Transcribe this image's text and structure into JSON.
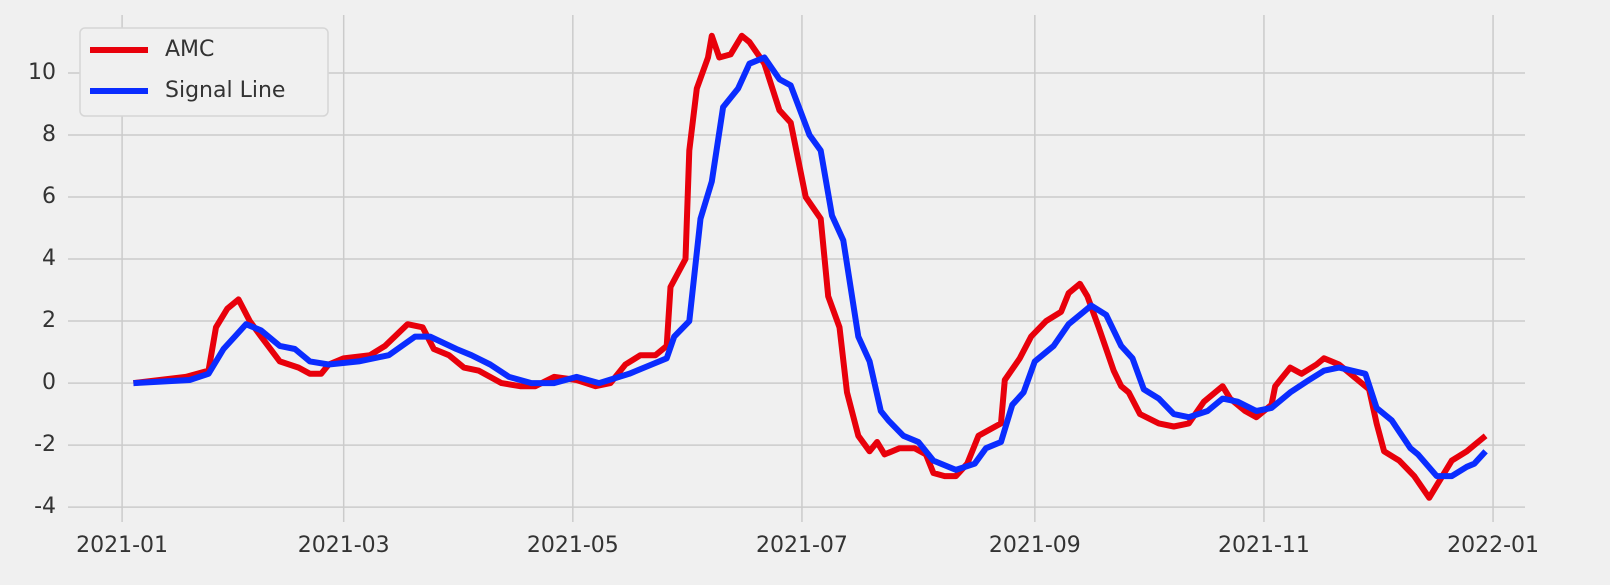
{
  "chart_data": {
    "type": "line",
    "xlim": [
      -14.4,
      373.5
    ],
    "xticks": [
      {
        "value": 0,
        "label": "2021-01"
      },
      {
        "value": 59,
        "label": "2021-03"
      },
      {
        "value": 120,
        "label": "2021-05"
      },
      {
        "value": 181,
        "label": "2021-07"
      },
      {
        "value": 243,
        "label": "2021-09"
      },
      {
        "value": 304,
        "label": "2021-11"
      },
      {
        "value": 365,
        "label": "2022-01"
      }
    ],
    "ylim": [
      -4.48,
      11.87
    ],
    "yticks": [
      -4,
      -2,
      0,
      2,
      4,
      6,
      8,
      10
    ],
    "grid": true,
    "legend": "upper left",
    "series": [
      {
        "name": "AMC",
        "color": "#e8000b",
        "x": [
          3,
          17,
          23,
          25,
          28,
          31,
          34,
          37,
          42,
          47,
          50,
          53,
          55,
          59,
          66,
          70,
          76,
          80,
          83,
          87,
          91,
          95,
          101,
          106,
          110,
          115,
          121,
          126,
          130,
          134,
          138,
          142,
          145,
          146,
          150,
          151,
          153,
          156,
          157,
          159,
          162,
          165,
          167,
          171,
          175,
          178,
          182,
          186,
          188,
          191,
          193,
          196,
          199,
          201,
          203,
          207,
          211,
          214,
          216,
          219,
          222,
          225,
          228,
          234,
          235,
          239,
          242,
          246,
          250,
          252,
          255,
          257,
          260,
          264,
          266,
          268,
          271,
          276,
          280,
          284,
          288,
          293,
          295,
          299,
          302,
          306,
          307,
          311,
          314,
          318,
          320,
          324,
          328,
          332,
          334,
          336,
          340,
          344,
          348,
          350,
          354,
          358,
          360,
          363
        ],
        "values": [
          0,
          0.2,
          0.4,
          1.8,
          2.4,
          2.7,
          2.0,
          1.5,
          0.7,
          0.5,
          0.3,
          0.3,
          0.6,
          0.8,
          0.9,
          1.2,
          1.9,
          1.8,
          1.1,
          0.9,
          0.5,
          0.4,
          0.0,
          -0.1,
          -0.1,
          0.2,
          0.1,
          -0.1,
          0.0,
          0.6,
          0.9,
          0.9,
          1.2,
          3.1,
          4.0,
          7.5,
          9.5,
          10.5,
          11.2,
          10.5,
          10.6,
          11.2,
          11.0,
          10.3,
          8.8,
          8.4,
          6.0,
          5.3,
          2.8,
          1.8,
          -0.3,
          -1.7,
          -2.2,
          -1.9,
          -2.3,
          -2.1,
          -2.1,
          -2.3,
          -2.9,
          -3.0,
          -3.0,
          -2.6,
          -1.7,
          -1.3,
          0.1,
          0.8,
          1.5,
          2.0,
          2.3,
          2.9,
          3.2,
          2.8,
          1.8,
          0.4,
          -0.1,
          -0.3,
          -1.0,
          -1.3,
          -1.4,
          -1.3,
          -0.6,
          -0.1,
          -0.5,
          -0.9,
          -1.1,
          -0.7,
          -0.1,
          0.5,
          0.3,
          0.6,
          0.8,
          0.6,
          0.2,
          -0.2,
          -1.3,
          -2.2,
          -2.5,
          -3.0,
          -3.7,
          -3.3,
          -2.5,
          -2.2,
          -2.0,
          -1.7
        ]
      },
      {
        "name": "Signal Line",
        "color": "#0a2cff",
        "x": [
          3,
          18,
          23,
          27,
          30,
          33,
          37,
          42,
          46,
          50,
          55,
          63,
          71,
          78,
          82,
          89,
          93,
          98,
          103,
          109,
          115,
          121,
          127,
          135,
          141,
          145,
          147,
          151,
          154,
          157,
          160,
          164,
          167,
          171,
          175,
          178,
          183,
          186,
          189,
          192,
          196,
          199,
          202,
          204,
          208,
          212,
          216,
          222,
          227,
          230,
          234,
          237,
          240,
          243,
          248,
          252,
          256,
          258,
          262,
          266,
          269,
          272,
          276,
          280,
          284,
          289,
          293,
          297,
          302,
          306,
          311,
          316,
          320,
          324,
          331,
          334,
          338,
          343,
          345,
          350,
          354,
          358,
          360,
          363
        ],
        "values": [
          0,
          0.1,
          0.3,
          1.1,
          1.5,
          1.9,
          1.7,
          1.2,
          1.1,
          0.7,
          0.6,
          0.7,
          0.9,
          1.5,
          1.5,
          1.1,
          0.9,
          0.6,
          0.2,
          0.0,
          0.0,
          0.2,
          0.0,
          0.3,
          0.6,
          0.8,
          1.5,
          2.0,
          5.3,
          6.5,
          8.9,
          9.5,
          10.3,
          10.5,
          9.8,
          9.6,
          8.0,
          7.5,
          5.4,
          4.6,
          1.5,
          0.7,
          -0.9,
          -1.2,
          -1.7,
          -1.9,
          -2.5,
          -2.8,
          -2.6,
          -2.1,
          -1.9,
          -0.7,
          -0.3,
          0.7,
          1.2,
          1.9,
          2.3,
          2.5,
          2.2,
          1.2,
          0.8,
          -0.2,
          -0.5,
          -1.0,
          -1.1,
          -0.9,
          -0.5,
          -0.6,
          -0.9,
          -0.8,
          -0.3,
          0.1,
          0.4,
          0.5,
          0.3,
          -0.8,
          -1.2,
          -2.1,
          -2.3,
          -3.0,
          -3.0,
          -2.7,
          -2.6,
          -2.2
        ]
      }
    ]
  }
}
